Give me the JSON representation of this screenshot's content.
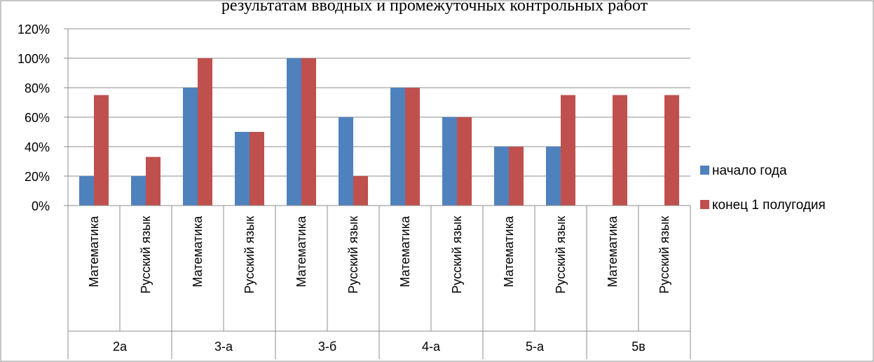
{
  "chart_data": {
    "type": "bar",
    "title": "результатам вводных и промежуточных контрольных работ",
    "xlabel": "",
    "ylabel": "",
    "ylim": [
      0,
      120
    ],
    "y_ticks": [
      "0%",
      "20%",
      "40%",
      "60%",
      "80%",
      "100%",
      "120%"
    ],
    "grid": true,
    "legend_position": "right",
    "groups": [
      "2а",
      "3-а",
      "3-б",
      "4-а",
      "5-а",
      "5в"
    ],
    "categories": [
      "Математика",
      "Русский язык",
      "Математика",
      "Русский язык",
      "Математика",
      "Русский язык",
      "Математика",
      "Русский язык",
      "Математика",
      "Русский язык",
      "Математика",
      "Русский язык"
    ],
    "series": [
      {
        "name": "начало года",
        "color": "#4F81BD",
        "values": [
          20,
          20,
          80,
          50,
          100,
          60,
          80,
          60,
          40,
          40,
          0,
          0
        ]
      },
      {
        "name": "конец 1 полугодия",
        "color": "#C0504D",
        "values": [
          75,
          33,
          100,
          50,
          100,
          20,
          80,
          60,
          40,
          75,
          75,
          75
        ]
      }
    ]
  }
}
